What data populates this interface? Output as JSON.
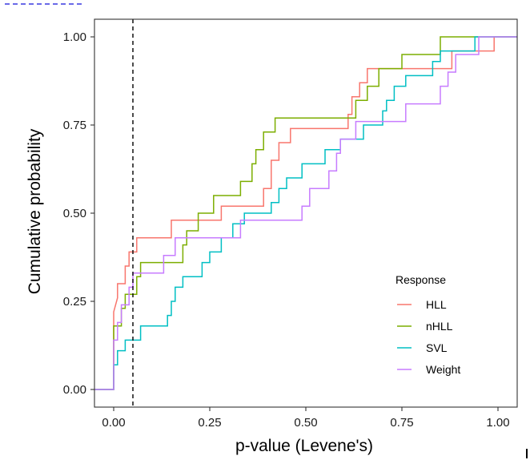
{
  "chart_data": {
    "type": "line",
    "step": true,
    "xlabel": "p-value (Levene's)",
    "ylabel": "Cumulative probability",
    "xlim": [
      -0.05,
      1.05
    ],
    "ylim": [
      -0.05,
      1.05
    ],
    "x_ticks": [
      0.0,
      0.25,
      0.5,
      0.75,
      1.0
    ],
    "x_tick_labels": [
      "0.00",
      "0.25",
      "0.50",
      "0.75",
      "1.00"
    ],
    "y_ticks": [
      0.0,
      0.25,
      0.5,
      0.75,
      1.0
    ],
    "y_tick_labels": [
      "0.00",
      "0.25",
      "0.50",
      "0.75",
      "1.00"
    ],
    "grid": false,
    "reference_line": {
      "x": 0.05,
      "style": "dashed",
      "color": "#000000"
    },
    "legend": {
      "title": "Response",
      "position": "bottom-right"
    },
    "series": [
      {
        "name": "HLL",
        "color": "#F8766D",
        "points": [
          [
            -0.05,
            0
          ],
          [
            0.0,
            0
          ],
          [
            0.0,
            0.22
          ],
          [
            0.01,
            0.26
          ],
          [
            0.01,
            0.3
          ],
          [
            0.03,
            0.3
          ],
          [
            0.03,
            0.35
          ],
          [
            0.04,
            0.35
          ],
          [
            0.04,
            0.39
          ],
          [
            0.06,
            0.39
          ],
          [
            0.06,
            0.43
          ],
          [
            0.15,
            0.43
          ],
          [
            0.15,
            0.48
          ],
          [
            0.28,
            0.48
          ],
          [
            0.28,
            0.52
          ],
          [
            0.39,
            0.52
          ],
          [
            0.39,
            0.57
          ],
          [
            0.41,
            0.57
          ],
          [
            0.41,
            0.65
          ],
          [
            0.43,
            0.65
          ],
          [
            0.43,
            0.7
          ],
          [
            0.46,
            0.7
          ],
          [
            0.46,
            0.74
          ],
          [
            0.61,
            0.74
          ],
          [
            0.61,
            0.78
          ],
          [
            0.62,
            0.78
          ],
          [
            0.62,
            0.83
          ],
          [
            0.64,
            0.83
          ],
          [
            0.64,
            0.87
          ],
          [
            0.66,
            0.87
          ],
          [
            0.66,
            0.91
          ],
          [
            0.75,
            0.91
          ],
          [
            0.75,
            0.91
          ],
          [
            0.88,
            0.91
          ],
          [
            0.88,
            0.96
          ],
          [
            0.99,
            0.96
          ],
          [
            0.99,
            1.0
          ],
          [
            1.05,
            1.0
          ]
        ]
      },
      {
        "name": "nHLL",
        "color": "#7CAE00",
        "points": [
          [
            -0.05,
            0
          ],
          [
            0.0,
            0
          ],
          [
            0.0,
            0.18
          ],
          [
            0.02,
            0.18
          ],
          [
            0.02,
            0.23
          ],
          [
            0.03,
            0.23
          ],
          [
            0.03,
            0.27
          ],
          [
            0.06,
            0.27
          ],
          [
            0.06,
            0.32
          ],
          [
            0.07,
            0.32
          ],
          [
            0.07,
            0.36
          ],
          [
            0.18,
            0.36
          ],
          [
            0.18,
            0.41
          ],
          [
            0.19,
            0.41
          ],
          [
            0.19,
            0.45
          ],
          [
            0.22,
            0.45
          ],
          [
            0.22,
            0.5
          ],
          [
            0.26,
            0.5
          ],
          [
            0.26,
            0.55
          ],
          [
            0.33,
            0.55
          ],
          [
            0.33,
            0.59
          ],
          [
            0.36,
            0.59
          ],
          [
            0.36,
            0.64
          ],
          [
            0.37,
            0.64
          ],
          [
            0.37,
            0.68
          ],
          [
            0.39,
            0.68
          ],
          [
            0.39,
            0.73
          ],
          [
            0.42,
            0.73
          ],
          [
            0.42,
            0.77
          ],
          [
            0.63,
            0.77
          ],
          [
            0.63,
            0.82
          ],
          [
            0.66,
            0.82
          ],
          [
            0.66,
            0.86
          ],
          [
            0.69,
            0.86
          ],
          [
            0.69,
            0.91
          ],
          [
            0.75,
            0.91
          ],
          [
            0.75,
            0.95
          ],
          [
            0.85,
            0.95
          ],
          [
            0.85,
            1.0
          ],
          [
            1.05,
            1.0
          ]
        ]
      },
      {
        "name": "SVL",
        "color": "#00BFC4",
        "points": [
          [
            -0.05,
            0
          ],
          [
            0.0,
            0
          ],
          [
            0.0,
            0.07
          ],
          [
            0.01,
            0.07
          ],
          [
            0.01,
            0.11
          ],
          [
            0.03,
            0.11
          ],
          [
            0.03,
            0.14
          ],
          [
            0.07,
            0.14
          ],
          [
            0.07,
            0.18
          ],
          [
            0.14,
            0.18
          ],
          [
            0.14,
            0.21
          ],
          [
            0.15,
            0.21
          ],
          [
            0.15,
            0.25
          ],
          [
            0.16,
            0.25
          ],
          [
            0.16,
            0.29
          ],
          [
            0.18,
            0.29
          ],
          [
            0.18,
            0.32
          ],
          [
            0.23,
            0.32
          ],
          [
            0.23,
            0.36
          ],
          [
            0.25,
            0.36
          ],
          [
            0.25,
            0.39
          ],
          [
            0.28,
            0.39
          ],
          [
            0.28,
            0.43
          ],
          [
            0.31,
            0.43
          ],
          [
            0.31,
            0.47
          ],
          [
            0.34,
            0.47
          ],
          [
            0.34,
            0.5
          ],
          [
            0.41,
            0.5
          ],
          [
            0.41,
            0.53
          ],
          [
            0.43,
            0.53
          ],
          [
            0.43,
            0.57
          ],
          [
            0.45,
            0.57
          ],
          [
            0.45,
            0.6
          ],
          [
            0.49,
            0.6
          ],
          [
            0.49,
            0.64
          ],
          [
            0.55,
            0.64
          ],
          [
            0.55,
            0.68
          ],
          [
            0.59,
            0.68
          ],
          [
            0.59,
            0.71
          ],
          [
            0.65,
            0.71
          ],
          [
            0.65,
            0.75
          ],
          [
            0.7,
            0.75
          ],
          [
            0.7,
            0.79
          ],
          [
            0.71,
            0.79
          ],
          [
            0.71,
            0.82
          ],
          [
            0.73,
            0.82
          ],
          [
            0.73,
            0.86
          ],
          [
            0.76,
            0.86
          ],
          [
            0.76,
            0.89
          ],
          [
            0.83,
            0.89
          ],
          [
            0.83,
            0.93
          ],
          [
            0.85,
            0.93
          ],
          [
            0.85,
            0.96
          ],
          [
            0.94,
            0.96
          ],
          [
            0.94,
            1.0
          ],
          [
            1.05,
            1.0
          ]
        ]
      },
      {
        "name": "Weight",
        "color": "#C77CFF",
        "points": [
          [
            -0.05,
            0
          ],
          [
            0.0,
            0
          ],
          [
            0.0,
            0.14
          ],
          [
            0.01,
            0.14
          ],
          [
            0.01,
            0.19
          ],
          [
            0.02,
            0.19
          ],
          [
            0.02,
            0.24
          ],
          [
            0.04,
            0.24
          ],
          [
            0.04,
            0.29
          ],
          [
            0.05,
            0.29
          ],
          [
            0.05,
            0.33
          ],
          [
            0.13,
            0.33
          ],
          [
            0.13,
            0.38
          ],
          [
            0.16,
            0.38
          ],
          [
            0.16,
            0.43
          ],
          [
            0.33,
            0.43
          ],
          [
            0.33,
            0.48
          ],
          [
            0.49,
            0.48
          ],
          [
            0.49,
            0.52
          ],
          [
            0.51,
            0.52
          ],
          [
            0.51,
            0.57
          ],
          [
            0.56,
            0.57
          ],
          [
            0.56,
            0.62
          ],
          [
            0.58,
            0.62
          ],
          [
            0.58,
            0.67
          ],
          [
            0.59,
            0.67
          ],
          [
            0.59,
            0.71
          ],
          [
            0.63,
            0.71
          ],
          [
            0.63,
            0.76
          ],
          [
            0.76,
            0.76
          ],
          [
            0.76,
            0.81
          ],
          [
            0.85,
            0.81
          ],
          [
            0.85,
            0.86
          ],
          [
            0.87,
            0.86
          ],
          [
            0.87,
            0.9
          ],
          [
            0.89,
            0.9
          ],
          [
            0.89,
            0.95
          ],
          [
            0.95,
            0.95
          ],
          [
            0.95,
            1.0
          ],
          [
            1.05,
            1.0
          ]
        ]
      }
    ]
  }
}
